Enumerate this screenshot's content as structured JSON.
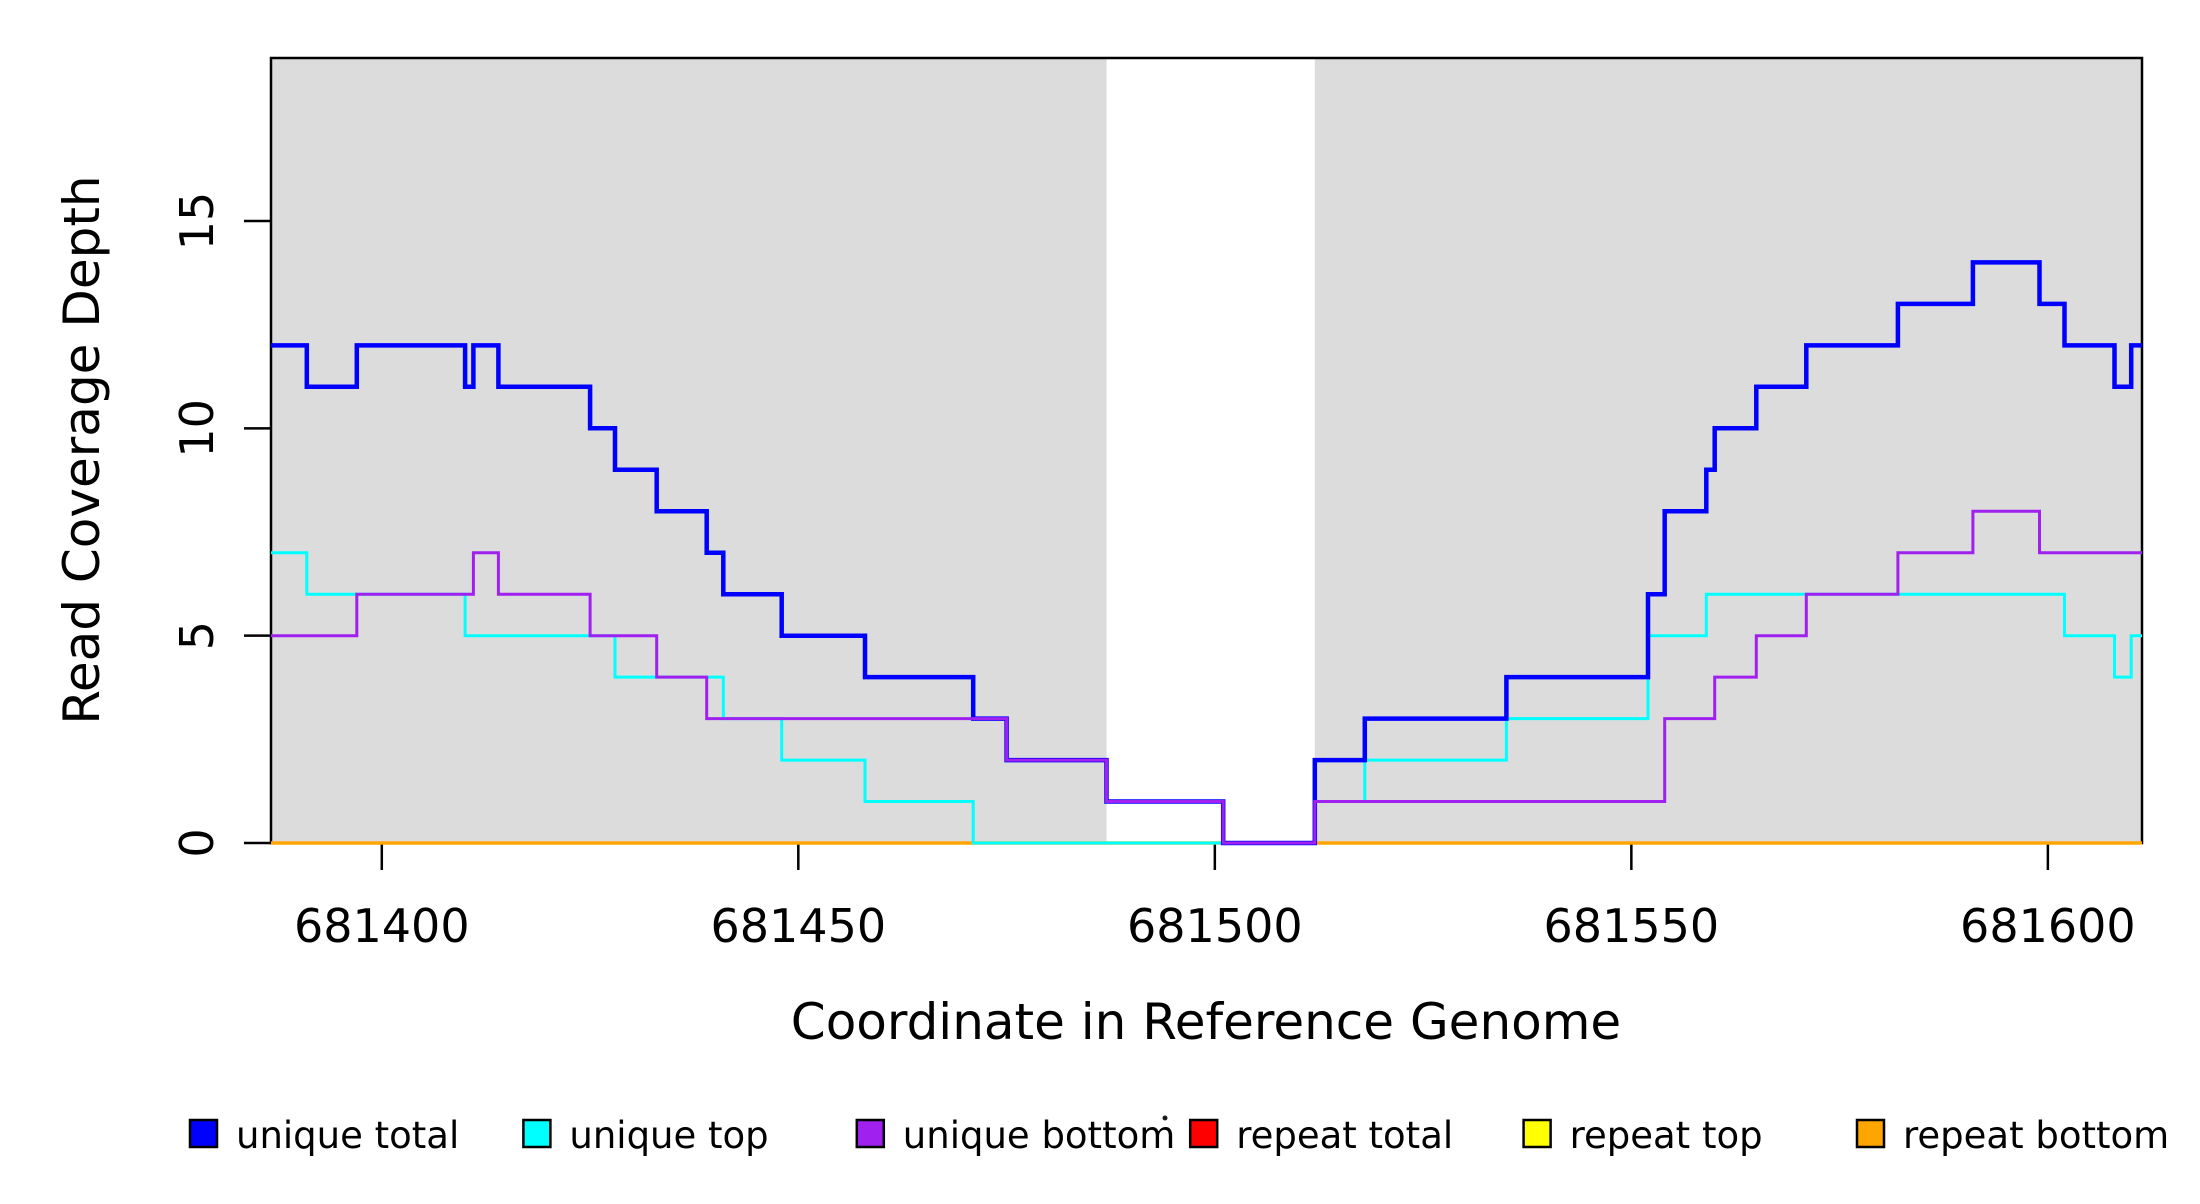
{
  "chart_data": {
    "type": "line",
    "subtype": "step-coverage-plot",
    "title": "",
    "xlabel": "Coordinate in Reference Genome",
    "ylabel": "Read Coverage Depth",
    "xlim": [
      681386.7,
      681611.3
    ],
    "ylim": [
      0,
      18.93
    ],
    "grid": "off",
    "background_color": "#ffffff",
    "plot_shading_color": "#dcdcdc",
    "shaded_regions": [
      {
        "from": 681386.7,
        "to": 681487,
        "label": "left-gray-region"
      },
      {
        "from": 681512,
        "to": 681611.3,
        "label": "right-gray-region"
      }
    ],
    "x_ticks": [
      {
        "value": 681400,
        "label": "681400"
      },
      {
        "value": 681450,
        "label": "681450"
      },
      {
        "value": 681500,
        "label": "681500"
      },
      {
        "value": 681550,
        "label": "681550"
      },
      {
        "value": 681600,
        "label": "681600"
      }
    ],
    "y_ticks": [
      {
        "value": 0,
        "label": "0"
      },
      {
        "value": 5,
        "label": "5"
      },
      {
        "value": 10,
        "label": "10"
      },
      {
        "value": 15,
        "label": "15"
      }
    ],
    "series_paint_order": [
      {
        "name": "repeat total",
        "color": "#FF0000",
        "line_width": 3,
        "start_value": 0,
        "changes": []
      },
      {
        "name": "repeat top",
        "color": "#FFFF00",
        "line_width": 3,
        "start_value": 0,
        "changes": []
      },
      {
        "name": "repeat bottom",
        "color": "#FFA500",
        "line_width": 3.5,
        "start_value": 0,
        "changes": []
      },
      {
        "name": "unique top",
        "color": "#00FFFF",
        "line_width": 3,
        "start_value": 7,
        "changes": [
          [
            681391,
            6
          ],
          [
            681410,
            5
          ],
          [
            681428,
            4
          ],
          [
            681441,
            3
          ],
          [
            681448,
            2
          ],
          [
            681458,
            1
          ],
          [
            681471,
            0
          ],
          [
            681512,
            1
          ],
          [
            681518,
            2
          ],
          [
            681535,
            3
          ],
          [
            681552,
            5
          ],
          [
            681559,
            6
          ],
          [
            681602,
            5
          ],
          [
            681608,
            4
          ],
          [
            681610,
            5
          ]
        ]
      },
      {
        "name": "unique total",
        "color": "#0000FF",
        "line_width": 4.5,
        "start_value": 12,
        "changes": [
          [
            681391,
            11
          ],
          [
            681397,
            12
          ],
          [
            681410,
            11
          ],
          [
            681411,
            12
          ],
          [
            681414,
            11
          ],
          [
            681425,
            10
          ],
          [
            681428,
            9
          ],
          [
            681433,
            8
          ],
          [
            681439,
            7
          ],
          [
            681441,
            6
          ],
          [
            681448,
            5
          ],
          [
            681458,
            4
          ],
          [
            681471,
            3
          ],
          [
            681475,
            2
          ],
          [
            681487,
            1
          ],
          [
            681501,
            0
          ],
          [
            681512,
            2
          ],
          [
            681518,
            3
          ],
          [
            681535,
            4
          ],
          [
            681552,
            6
          ],
          [
            681554,
            8
          ],
          [
            681559,
            9
          ],
          [
            681560,
            10
          ],
          [
            681565,
            11
          ],
          [
            681571,
            12
          ],
          [
            681582,
            13
          ],
          [
            681591,
            14
          ],
          [
            681599,
            13
          ],
          [
            681602,
            12
          ],
          [
            681608,
            11
          ],
          [
            681610,
            12
          ]
        ]
      },
      {
        "name": "unique bottom",
        "color": "#A020F0",
        "line_width": 3,
        "start_value": 5,
        "changes": [
          [
            681397,
            6
          ],
          [
            681411,
            7
          ],
          [
            681414,
            6
          ],
          [
            681425,
            5
          ],
          [
            681433,
            4
          ],
          [
            681439,
            3
          ],
          [
            681475,
            2
          ],
          [
            681487,
            1
          ],
          [
            681501,
            0
          ],
          [
            681512,
            1
          ],
          [
            681554,
            3
          ],
          [
            681560,
            4
          ],
          [
            681565,
            5
          ],
          [
            681571,
            6
          ],
          [
            681582,
            7
          ],
          [
            681591,
            8
          ],
          [
            681599,
            7
          ]
        ]
      }
    ],
    "legend": {
      "position": "bottom",
      "items": [
        {
          "label": "unique total",
          "color": "#0000FF"
        },
        {
          "label": "unique top",
          "color": "#00FFFF"
        },
        {
          "label": "unique bottom",
          "color": "#A020F0"
        },
        {
          "label": "repeat total",
          "color": "#FF0000"
        },
        {
          "label": "repeat top",
          "color": "#FFFF00"
        },
        {
          "label": "repeat bottom",
          "color": "#FFA500"
        }
      ]
    }
  }
}
